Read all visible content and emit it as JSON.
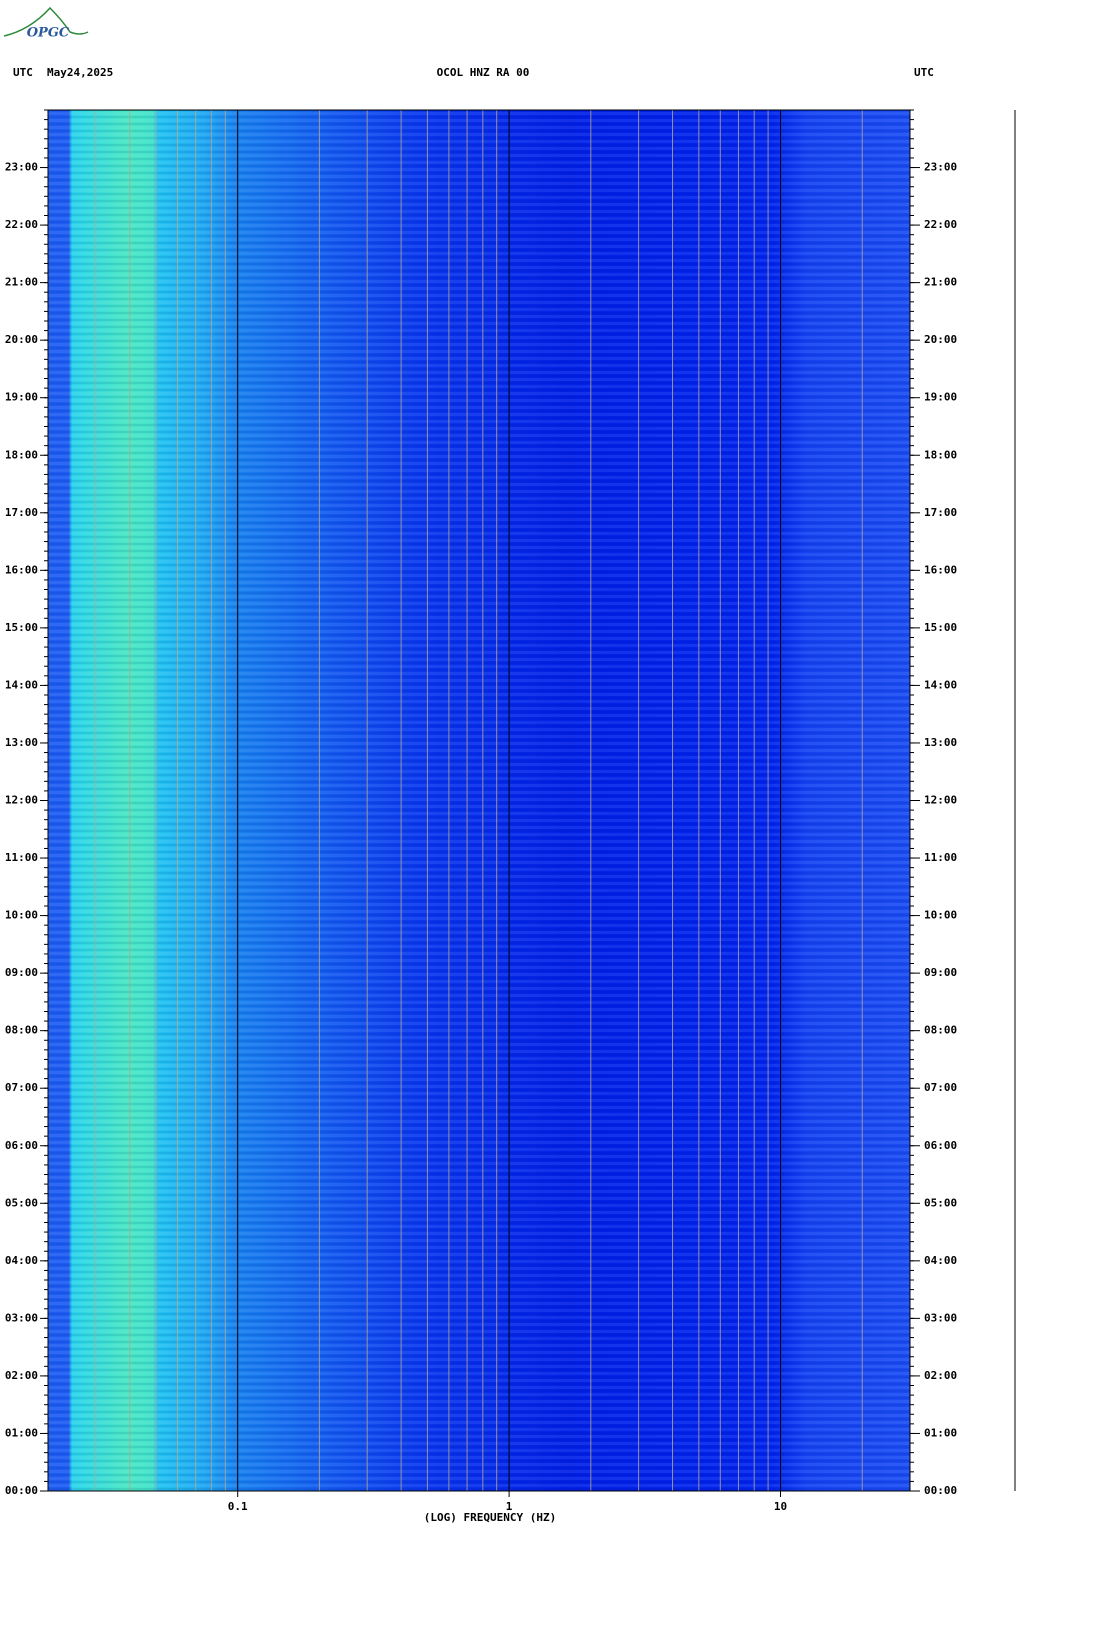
{
  "logo": "OPGC",
  "chart_data": {
    "type": "spectrogram",
    "title": "OCOL HNZ RA 00",
    "date": "May24,2025",
    "left_label": "UTC",
    "right_label": "UTC",
    "x_label": "(LOG) FREQUENCY (HZ)",
    "x_scale": "log",
    "xlim": [
      0.02,
      30
    ],
    "xticks": [
      0.1,
      1,
      10
    ],
    "xminorticks": [
      0.03,
      0.04,
      0.05,
      0.06,
      0.07,
      0.08,
      0.09,
      0.2,
      0.3,
      0.4,
      0.5,
      0.6,
      0.7,
      0.8,
      0.9,
      2,
      3,
      4,
      5,
      6,
      7,
      8,
      9,
      20
    ],
    "ylim": [
      0,
      24
    ],
    "yticks": [
      {
        "value": 0,
        "label": "00:00"
      },
      {
        "value": 1,
        "label": "01:00"
      },
      {
        "value": 2,
        "label": "02:00"
      },
      {
        "value": 3,
        "label": "03:00"
      },
      {
        "value": 4,
        "label": "04:00"
      },
      {
        "value": 5,
        "label": "05:00"
      },
      {
        "value": 6,
        "label": "06:00"
      },
      {
        "value": 7,
        "label": "07:00"
      },
      {
        "value": 8,
        "label": "08:00"
      },
      {
        "value": 9,
        "label": "09:00"
      },
      {
        "value": 10,
        "label": "10:00"
      },
      {
        "value": 11,
        "label": "11:00"
      },
      {
        "value": 12,
        "label": "12:00"
      },
      {
        "value": 13,
        "label": "13:00"
      },
      {
        "value": 14,
        "label": "14:00"
      },
      {
        "value": 15,
        "label": "15:00"
      },
      {
        "value": 16,
        "label": "16:00"
      },
      {
        "value": 17,
        "label": "17:00"
      },
      {
        "value": 18,
        "label": "18:00"
      },
      {
        "value": 19,
        "label": "19:00"
      },
      {
        "value": 20,
        "label": "20:00"
      },
      {
        "value": 21,
        "label": "21:00"
      },
      {
        "value": 22,
        "label": "22:00"
      },
      {
        "value": 23,
        "label": "23:00"
      }
    ]
  }
}
